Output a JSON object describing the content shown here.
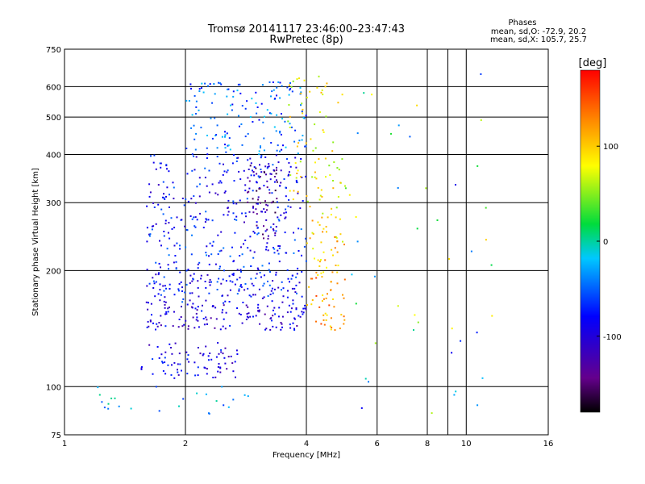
{
  "title_line1": "Tromsø 20141117 23:46:00–23:47:43",
  "title_line2": "RwPretec (8p)",
  "stats": {
    "heading": "Phases",
    "line1": "mean, sd,O: -72.9, 20.2",
    "line2": "mean, sd,X: 105.7, 25.7"
  },
  "colorbar": {
    "label": "[deg]",
    "range": [
      -180,
      180
    ],
    "ticks": [
      "100",
      "0",
      "-100"
    ],
    "tick_values": [
      100,
      0,
      -100
    ]
  },
  "chart_data": {
    "type": "scatter",
    "title": "Tromsø 20141117 23:46:00–23:47:43",
    "subtitle": "RwPretec (8p)",
    "xlabel": "Frequency [MHz]",
    "ylabel": "Stationary phase Virtual Height [km]",
    "x_scale": "log",
    "y_scale": "log",
    "xlim": [
      1,
      16
    ],
    "ylim": [
      75,
      750
    ],
    "x_ticks": [
      "1",
      "2",
      "4",
      "6",
      "8",
      "10",
      "16"
    ],
    "x_tick_values": [
      1,
      2,
      4,
      6,
      8,
      10,
      16
    ],
    "y_ticks": [
      "750",
      "600",
      "500",
      "400",
      "300",
      "200",
      "100",
      "75"
    ],
    "y_tick_values": [
      750,
      600,
      500,
      400,
      300,
      200,
      100,
      75
    ],
    "x_gridlines": [
      2,
      4,
      6,
      8,
      9,
      10
    ],
    "y_gridlines": [
      600,
      500,
      400,
      300,
      200,
      100
    ],
    "grid": true,
    "color_scale": "rainbow (black → purple → blue → cyan → green → yellow → orange → red)",
    "clusters": [
      {
        "trace": "O",
        "freq": [
          1.55,
          2.7
        ],
        "height": [
          105,
          130
        ],
        "phase": -95,
        "density": 80
      },
      {
        "trace": "O",
        "freq": [
          1.6,
          4.0
        ],
        "height": [
          140,
          165
        ],
        "phase": -100,
        "density": 140
      },
      {
        "trace": "O",
        "freq": [
          1.6,
          4.0
        ],
        "height": [
          165,
          200
        ],
        "phase": -80,
        "density": 150
      },
      {
        "trace": "O",
        "freq": [
          1.6,
          4.0
        ],
        "height": [
          200,
          280
        ],
        "phase": -75,
        "density": 160
      },
      {
        "trace": "O",
        "freq": [
          1.6,
          4.0
        ],
        "height": [
          280,
          400
        ],
        "phase": -80,
        "density": 160
      },
      {
        "trace": "O",
        "freq": [
          2.0,
          4.0
        ],
        "height": [
          400,
          620
        ],
        "phase": -50,
        "density": 150
      },
      {
        "trace": "O",
        "freq": [
          2.8,
          3.4
        ],
        "height": [
          240,
          380
        ],
        "phase": -130,
        "density": 70
      },
      {
        "trace": "X",
        "freq": [
          4.0,
          5.0
        ],
        "height": [
          140,
          200
        ],
        "phase": 120,
        "density": 50
      },
      {
        "trace": "X",
        "freq": [
          4.0,
          5.0
        ],
        "height": [
          200,
          280
        ],
        "phase": 100,
        "density": 40
      },
      {
        "trace": "X",
        "freq": [
          3.6,
          5.0
        ],
        "height": [
          280,
          650
        ],
        "phase": 80,
        "density": 80
      },
      {
        "trace": "scattered",
        "freq": [
          5.0,
          12.0
        ],
        "height": [
          80,
          650
        ],
        "phase": 0,
        "density": 45
      },
      {
        "trace": "low",
        "freq": [
          1.1,
          3.0
        ],
        "height": [
          85,
          100
        ],
        "phase": -30,
        "density": 25
      }
    ]
  }
}
